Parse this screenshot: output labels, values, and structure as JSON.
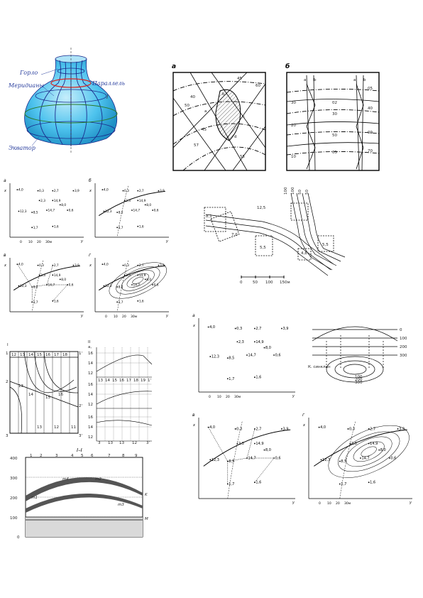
{
  "vase": {
    "labels": {
      "neck": "Горло",
      "meridians": "Меридианы",
      "parallel": "Параллель",
      "equator": "Экватор",
      "axis": "l"
    },
    "colors": {
      "body": "#4ec3ee",
      "body_light": "#bfeaf9",
      "lines": "#1b2a8c",
      "parallel": "#d8241f",
      "text": "#2a3f9e"
    }
  },
  "isolines": {
    "panel_a": {
      "letter": "а",
      "label_a": "a",
      "label_b": "b",
      "label_c": "c",
      "label_d": "d",
      "iso": [
        "40",
        "45",
        "50",
        "55",
        "57",
        "60",
        "45"
      ]
    },
    "panel_b": {
      "letter": "б",
      "label_a": "a",
      "label_b": "b",
      "iso": [
        "30",
        "20",
        "10",
        "05",
        "30",
        "02",
        "50",
        "40",
        "09",
        "05",
        "70"
      ]
    }
  },
  "stations_small": {
    "values": [
      "4,0",
      "0,3",
      "2,7",
      "3,9",
      "2,3",
      "14,9",
      "8,0",
      "12,3",
      "8,5",
      "14,7",
      "0,6",
      "1,7",
      "1,6"
    ],
    "letters": [
      "а",
      "б",
      "в",
      "г"
    ],
    "axis_x": "x",
    "axis_y": "y",
    "scale": [
      "0",
      "10",
      "20",
      "30м"
    ]
  },
  "stations_large": {
    "values": [
      "4,0",
      "0,3",
      "2,7",
      "3,9",
      "2,3",
      "14,9",
      "8,0",
      "12,3",
      "8,5",
      "14,7",
      "0,6",
      "1,7",
      "1,6"
    ],
    "letters": [
      "а",
      "в",
      "г"
    ],
    "axis_x": "x",
    "axis_y": "y",
    "scale": [
      "0",
      "10",
      "20",
      "30м"
    ]
  },
  "route": {
    "numbers": [
      "12,5",
      "8,1",
      "7,0",
      "5,5",
      "4,8",
      "5,5"
    ],
    "top_labels": [
      "100",
      "100",
      "50",
      "50"
    ],
    "scale": [
      "0",
      "50",
      "100",
      "150м"
    ]
  },
  "profile_grid": {
    "roman_I": "I",
    "roman_II": "II",
    "section_label": "I–I",
    "corners": [
      "1",
      "2",
      "3",
      "1'",
      "2'",
      "3'"
    ],
    "grid_numbers": [
      "12",
      "13",
      "14",
      "15",
      "16",
      "17",
      "18",
      "13",
      "14",
      "16",
      "15",
      "13",
      "12",
      "11"
    ],
    "graph_y_unit": "a,",
    "graph_y": [
      "16",
      "14",
      "12",
      "16",
      "14",
      "12",
      "16",
      "14",
      "12"
    ],
    "graph_x": [
      "13",
      "14",
      "15",
      "16",
      "17",
      "18",
      "19",
      "1'"
    ],
    "graph_x2": [
      "3",
      "13",
      "13",
      "12",
      "3'"
    ]
  },
  "section": {
    "title": "I–I",
    "y_ticks": [
      "400",
      "300",
      "200",
      "100",
      "0"
    ],
    "top_numbers": [
      "1",
      "2",
      "3",
      "4",
      "5",
      "6",
      "7",
      "8",
      "9"
    ],
    "labels": {
      "m1": "m1",
      "m2": "m2",
      "m3": "m3",
      "m4": "m4",
      "k": "K",
      "m": "M"
    }
  },
  "dome": {
    "levels": [
      "0",
      "100",
      "200",
      "300",
      "100",
      "200",
      "300"
    ],
    "note": "К. синклин"
  }
}
